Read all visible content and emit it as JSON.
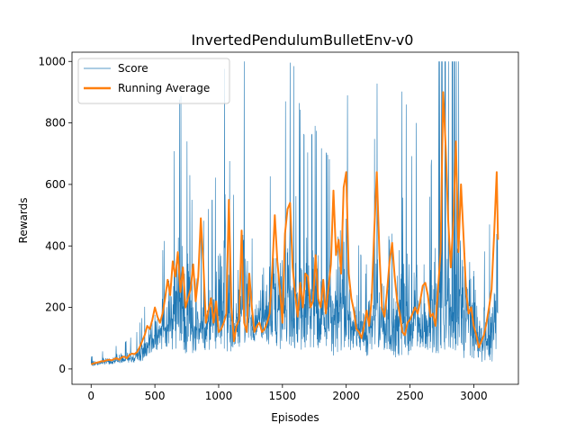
{
  "colors": {
    "score": "#1f77b4",
    "running_average": "#ff7f0e",
    "axes": "#000000",
    "background": "#ffffff"
  },
  "chart_data": {
    "type": "line",
    "title": "InvertedPendulumBulletEnv-v0",
    "xlabel": "Episodes",
    "ylabel": "Rewards",
    "xlim": [
      -150,
      3350
    ],
    "ylim": [
      -50,
      1030
    ],
    "xticks": [
      0,
      500,
      1000,
      1500,
      2000,
      2500,
      3000
    ],
    "yticks": [
      0,
      200,
      400,
      600,
      800,
      1000
    ],
    "grid": false,
    "legend": {
      "location": "upper-left",
      "entries": [
        "Score",
        "Running Average"
      ]
    },
    "episodes": 3190,
    "series": [
      {
        "name": "Score",
        "style": "thin line",
        "note": "per-episode reward, very noisy; envelope below (low/high by episode)",
        "x": [
          0,
          50,
          100,
          150,
          200,
          250,
          300,
          350,
          400,
          450,
          500,
          550,
          600,
          650,
          700,
          750,
          800,
          850,
          900,
          950,
          1000,
          1050,
          1100,
          1150,
          1200,
          1250,
          1300,
          1350,
          1400,
          1450,
          1500,
          1550,
          1600,
          1650,
          1700,
          1750,
          1800,
          1850,
          1900,
          1950,
          2000,
          2050,
          2100,
          2150,
          2200,
          2250,
          2300,
          2350,
          2400,
          2450,
          2500,
          2550,
          2600,
          2650,
          2700,
          2750,
          2800,
          2850,
          2900,
          2950,
          3000,
          3050,
          3100,
          3150,
          3190
        ],
        "low": [
          10,
          12,
          15,
          15,
          18,
          20,
          20,
          22,
          25,
          40,
          60,
          60,
          70,
          60,
          60,
          40,
          50,
          70,
          60,
          60,
          70,
          60,
          40,
          40,
          80,
          90,
          80,
          80,
          80,
          70,
          60,
          70,
          50,
          60,
          60,
          60,
          60,
          70,
          40,
          50,
          60,
          60,
          50,
          40,
          50,
          60,
          60,
          40,
          30,
          30,
          50,
          60,
          60,
          60,
          40,
          50,
          70,
          50,
          30,
          40,
          25,
          20,
          25,
          20,
          80
        ],
        "high": [
          40,
          45,
          60,
          70,
          75,
          80,
          100,
          110,
          170,
          250,
          300,
          350,
          500,
          700,
          900,
          750,
          500,
          450,
          500,
          550,
          700,
          1000,
          550,
          600,
          1000,
          400,
          500,
          550,
          620,
          700,
          750,
          1000,
          980,
          800,
          700,
          800,
          720,
          700,
          650,
          1000,
          1000,
          450,
          400,
          300,
          550,
          1000,
          500,
          400,
          650,
          1000,
          650,
          800,
          300,
          500,
          1000,
          1000,
          1000,
          1000,
          1000,
          850,
          600,
          450,
          350,
          600,
          1000
        ]
      },
      {
        "name": "Running Average",
        "style": "thick line",
        "x": [
          0,
          20,
          40,
          60,
          80,
          100,
          120,
          140,
          160,
          180,
          200,
          220,
          240,
          260,
          280,
          300,
          320,
          340,
          360,
          380,
          400,
          420,
          440,
          460,
          480,
          500,
          520,
          540,
          560,
          580,
          600,
          620,
          640,
          660,
          680,
          700,
          720,
          740,
          760,
          780,
          800,
          820,
          840,
          860,
          880,
          900,
          920,
          940,
          960,
          980,
          1000,
          1020,
          1040,
          1060,
          1080,
          1100,
          1120,
          1140,
          1160,
          1180,
          1200,
          1220,
          1240,
          1260,
          1280,
          1300,
          1320,
          1340,
          1360,
          1380,
          1400,
          1420,
          1440,
          1460,
          1480,
          1500,
          1520,
          1540,
          1560,
          1580,
          1600,
          1620,
          1640,
          1660,
          1680,
          1700,
          1720,
          1740,
          1760,
          1780,
          1800,
          1820,
          1840,
          1860,
          1880,
          1900,
          1920,
          1940,
          1960,
          1980,
          2000,
          2020,
          2040,
          2060,
          2080,
          2100,
          2120,
          2140,
          2160,
          2180,
          2200,
          2220,
          2240,
          2260,
          2280,
          2300,
          2320,
          2340,
          2360,
          2380,
          2400,
          2420,
          2440,
          2460,
          2480,
          2500,
          2520,
          2540,
          2560,
          2580,
          2600,
          2620,
          2640,
          2660,
          2680,
          2700,
          2720,
          2740,
          2760,
          2780,
          2800,
          2820,
          2840,
          2860,
          2880,
          2900,
          2920,
          2940,
          2960,
          2980,
          3000,
          3020,
          3040,
          3060,
          3080,
          3100,
          3120,
          3140,
          3160,
          3180,
          3190
        ],
        "y": [
          15,
          18,
          20,
          22,
          25,
          25,
          28,
          30,
          28,
          32,
          35,
          30,
          38,
          40,
          35,
          45,
          50,
          48,
          55,
          70,
          90,
          110,
          140,
          130,
          160,
          200,
          170,
          150,
          180,
          230,
          290,
          240,
          350,
          300,
          380,
          250,
          330,
          200,
          230,
          260,
          340,
          220,
          300,
          490,
          340,
          150,
          190,
          230,
          150,
          220,
          120,
          130,
          150,
          180,
          550,
          200,
          90,
          140,
          160,
          450,
          150,
          120,
          310,
          200,
          120,
          140,
          150,
          120,
          130,
          150,
          180,
          320,
          500,
          350,
          260,
          150,
          440,
          520,
          540,
          330,
          240,
          170,
          280,
          200,
          310,
          300,
          200,
          220,
          370,
          230,
          200,
          290,
          180,
          260,
          340,
          580,
          370,
          420,
          310,
          590,
          640,
          310,
          230,
          190,
          130,
          120,
          100,
          140,
          190,
          140,
          230,
          450,
          640,
          380,
          200,
          170,
          250,
          350,
          410,
          300,
          220,
          180,
          120,
          110,
          150,
          160,
          180,
          200,
          180,
          220,
          270,
          280,
          240,
          170,
          180,
          140,
          260,
          380,
          900,
          720,
          480,
          330,
          480,
          740,
          380,
          600,
          430,
          250,
          180,
          200,
          140,
          110,
          70,
          90,
          110,
          150,
          200,
          260,
          440,
          640,
          420
        ]
      }
    ]
  }
}
